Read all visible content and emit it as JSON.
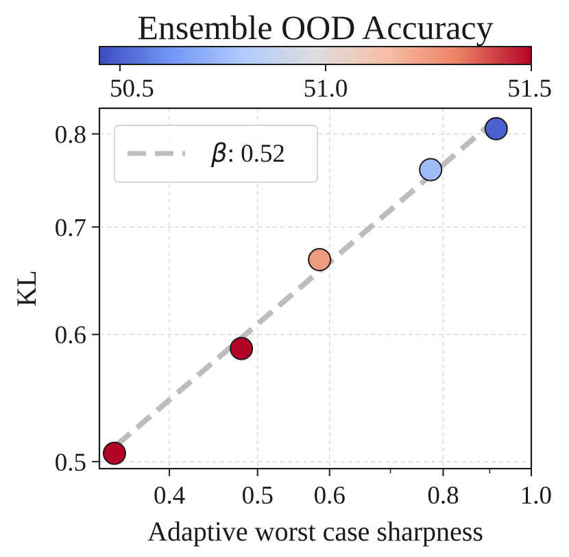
{
  "chart_data": {
    "type": "scatter",
    "xlabel": "Adaptive worst case sharpness",
    "ylabel": "KL",
    "x_scale": "log",
    "y_scale": "log",
    "xlim": [
      0.335,
      1.0
    ],
    "ylim": [
      0.495,
      0.83
    ],
    "xticks": [
      0.4,
      0.5,
      0.6,
      0.8,
      1.0
    ],
    "xtick_labels": [
      "0.4",
      "0.5",
      "0.6",
      "0.8",
      "1.0"
    ],
    "x_minor_ticks": [
      0.7,
      0.9
    ],
    "yticks": [
      0.5,
      0.6,
      0.7,
      0.8
    ],
    "ytick_labels": [
      "0.5",
      "0.6",
      "0.7",
      "0.8"
    ],
    "grid": true,
    "points": [
      {
        "x": 0.348,
        "y": 0.506,
        "color_value": 51.5
      },
      {
        "x": 0.48,
        "y": 0.588,
        "color_value": 51.5
      },
      {
        "x": 0.585,
        "y": 0.668,
        "color_value": 51.25
      },
      {
        "x": 0.775,
        "y": 0.76,
        "color_value": 50.75
      },
      {
        "x": 0.915,
        "y": 0.806,
        "color_value": 50.5
      }
    ],
    "fit_line": {
      "label_symbol": "β",
      "label_value": ": 0.52",
      "x": [
        0.35,
        0.91
      ],
      "y": [
        0.512,
        0.815
      ],
      "color": "#bdbdbd"
    },
    "legend_position": "upper-left",
    "colorbar": {
      "title": "Ensemble OOD Accuracy",
      "min": 50.45,
      "max": 51.5,
      "ticks": [
        50.5,
        51.0,
        51.5
      ],
      "tick_labels": [
        "50.5",
        "51.0",
        "51.5"
      ],
      "colormap": "coolwarm",
      "colors": [
        "#3b4cc0",
        "#7396f5",
        "#b0cbfc",
        "#dddddd",
        "#f6bfa6",
        "#ec7f63",
        "#b40426"
      ]
    }
  }
}
